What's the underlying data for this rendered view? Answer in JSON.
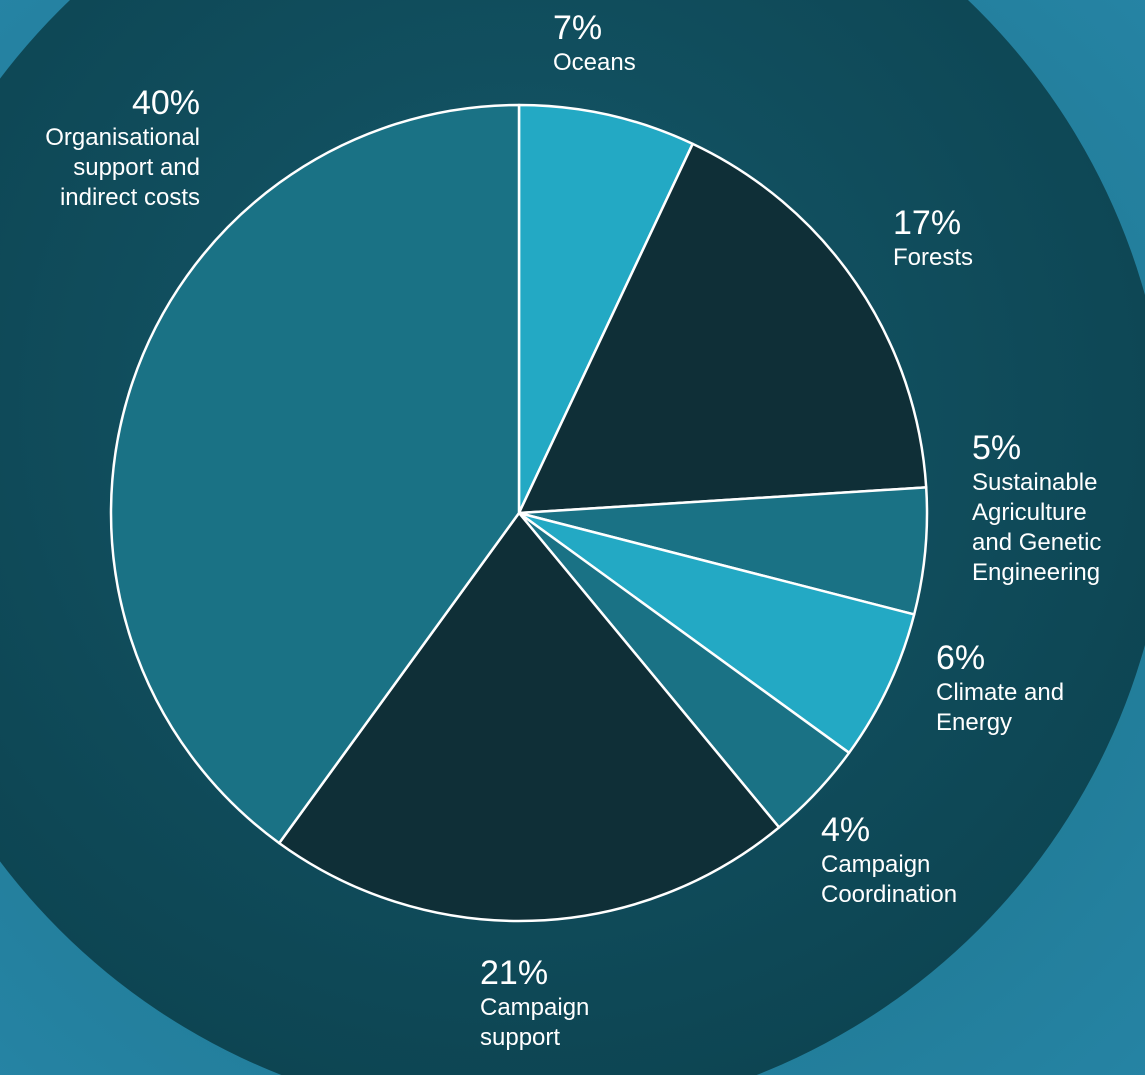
{
  "chart_data": {
    "type": "pie",
    "categories": [
      "Oceans",
      "Forests",
      "Sustainable\nAgriculture\nand Genetic\nEngineering",
      "Climate and\nEnergy",
      "Campaign\nCoordination",
      "Campaign\nsupport",
      "Organisational\nsupport and\nindirect costs"
    ],
    "values": [
      7,
      17,
      5,
      6,
      4,
      21,
      40
    ],
    "value_labels": [
      "7%",
      "17%",
      "5%",
      "6%",
      "4%",
      "21%",
      "40%"
    ],
    "colors": [
      "#23a9c4",
      "#0f2f37",
      "#1a7285",
      "#23a9c4",
      "#1a7285",
      "#0f2f37",
      "#1a7285"
    ]
  }
}
